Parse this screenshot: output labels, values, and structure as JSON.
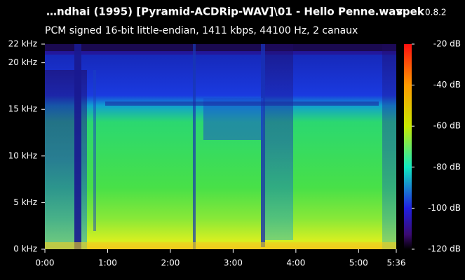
{
  "chart_data": {
    "type": "spectrogram",
    "title": "…ndhai (1995) [Pyramid-ACDRip-WAV]\\01 - Hello Penne.wav",
    "app_name": "spek",
    "app_version": "0.8.2",
    "subtitle": "PCM signed 16-bit little-endian, 1411 kbps, 44100 Hz, 2 canaux",
    "xlim": [
      0,
      336
    ],
    "xticks": [
      {
        "value": 0,
        "label": "0:00"
      },
      {
        "value": 60,
        "label": "1:00"
      },
      {
        "value": 120,
        "label": "2:00"
      },
      {
        "value": 180,
        "label": "3:00"
      },
      {
        "value": 240,
        "label": "4:00"
      },
      {
        "value": 300,
        "label": "5:00"
      },
      {
        "value": 336,
        "label": "5:36"
      }
    ],
    "ylim": [
      0,
      22
    ],
    "yticks": [
      {
        "value": 0,
        "label": "0 kHz"
      },
      {
        "value": 5,
        "label": "5 kHz"
      },
      {
        "value": 10,
        "label": "10 kHz"
      },
      {
        "value": 15,
        "label": "15 kHz"
      },
      {
        "value": 20,
        "label": "20 kHz"
      },
      {
        "value": 22,
        "label": "22 kHz"
      }
    ],
    "colorbar": {
      "lim": [
        -120,
        -20
      ],
      "ticks": [
        {
          "value": -20,
          "label": "-20 dB"
        },
        {
          "value": -40,
          "label": "-40 dB"
        },
        {
          "value": -60,
          "label": "-60 dB"
        },
        {
          "value": -80,
          "label": "-80 dB"
        },
        {
          "value": -100,
          "label": "-100 dB"
        },
        {
          "value": -120,
          "label": "-120 dB"
        }
      ]
    }
  }
}
